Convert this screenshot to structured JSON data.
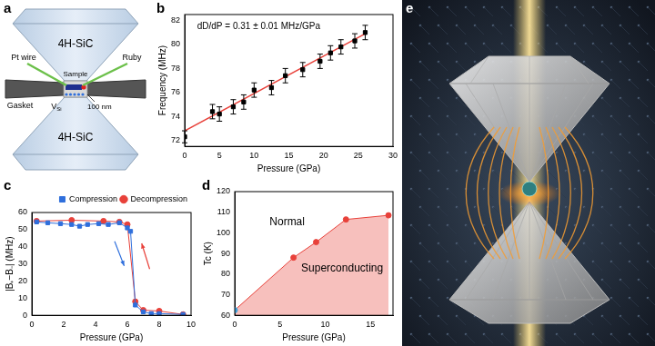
{
  "chart_data": [
    {
      "type": "scatter",
      "panel": "b",
      "annotations": [
        "dD/dP = 0.31 ± 0.01 MHz/GPa"
      ],
      "x_label": "Pressure (GPa)",
      "y_label": "Frequency (MHz)",
      "xlim": [
        0,
        30
      ],
      "xticks": [
        0,
        5,
        10,
        15,
        20,
        25,
        30
      ],
      "ylim": [
        71.5,
        82.5
      ],
      "yticks": [
        72,
        74,
        76,
        78,
        80,
        82
      ],
      "grid": false,
      "series": [
        {
          "x": [
            0,
            4,
            5,
            7,
            8.5,
            10,
            12.5,
            14.5,
            17,
            19.5,
            21,
            22.5,
            24.5,
            26
          ],
          "values": [
            72.3,
            74.4,
            74.2,
            74.8,
            75.2,
            76.2,
            76.4,
            77.4,
            77.9,
            78.6,
            79.3,
            79.8,
            80.3,
            81.0
          ],
          "errors": [
            0.5,
            0.6,
            0.6,
            0.6,
            0.6,
            0.6,
            0.6,
            0.6,
            0.6,
            0.6,
            0.6,
            0.6,
            0.6,
            0.6
          ],
          "color": "#000000",
          "marker": "square"
        },
        {
          "type": "line",
          "x": [
            0,
            26
          ],
          "values": [
            72.8,
            80.9
          ],
          "color": "#e8413a",
          "marker": "none"
        }
      ]
    },
    {
      "type": "line",
      "panel": "c",
      "x_label": "Pressure (GPa)",
      "y_label": "|B₊−B₋| (MHz)",
      "xlim": [
        0,
        10
      ],
      "xticks": [
        0,
        2,
        4,
        6,
        8,
        10
      ],
      "ylim": [
        0,
        60
      ],
      "yticks": [
        0,
        10,
        20,
        30,
        40,
        50,
        60
      ],
      "grid": false,
      "legend": "upper right",
      "series": [
        {
          "name": "Compression",
          "color": "#2f6fdc",
          "marker": "square",
          "x": [
            0.3,
            1,
            1.8,
            2.5,
            3,
            3.5,
            4.2,
            4.8,
            5.5,
            6,
            6.2,
            6.5,
            7,
            7.5,
            8,
            9.5
          ],
          "values": [
            54.5,
            54,
            53.5,
            53,
            52,
            53,
            53.5,
            53,
            54,
            51,
            49,
            6,
            2,
            1,
            1,
            0.5
          ]
        },
        {
          "name": "Decompression",
          "color": "#e8413a",
          "marker": "circle",
          "x": [
            0.3,
            2.5,
            4.5,
            5.5,
            6,
            6.5,
            7,
            8,
            9.5
          ],
          "values": [
            55,
            55.5,
            55,
            54.5,
            53,
            8,
            3,
            2.5,
            0.5
          ]
        }
      ]
    },
    {
      "type": "area",
      "panel": "d",
      "annotations": [
        "Normal",
        "Superconducting"
      ],
      "x_label": "Pressure (GPa)",
      "y_label": "Tc (K)",
      "xlim": [
        0,
        17.5
      ],
      "xticks": [
        0,
        5,
        10,
        15
      ],
      "ylim": [
        60,
        120
      ],
      "yticks": [
        60,
        70,
        80,
        90,
        100,
        110,
        120
      ],
      "grid": false,
      "series": [
        {
          "x": [
            0,
            6.5,
            9,
            12.3,
            17
          ],
          "values": [
            62.5,
            88,
            95.5,
            106.5,
            108.5
          ],
          "color": "#e8413a",
          "colors": [
            "#3fa0d8",
            "#e8413a",
            "#e8413a",
            "#e8413a",
            "#e8413a"
          ],
          "marker": "circle"
        }
      ]
    }
  ],
  "diagram": {
    "panel": "a",
    "labels": {
      "anvil_top": "4H-SiC",
      "anvil_bottom": "4H-SiC",
      "wire": "Pt wire",
      "sample": "Sample",
      "ruby": "Ruby",
      "gasket": "Gasket",
      "center": {
        "main": "V",
        "sub": "Si"
      },
      "scale": "100 nm"
    }
  },
  "illustration": {
    "panel": "e"
  }
}
